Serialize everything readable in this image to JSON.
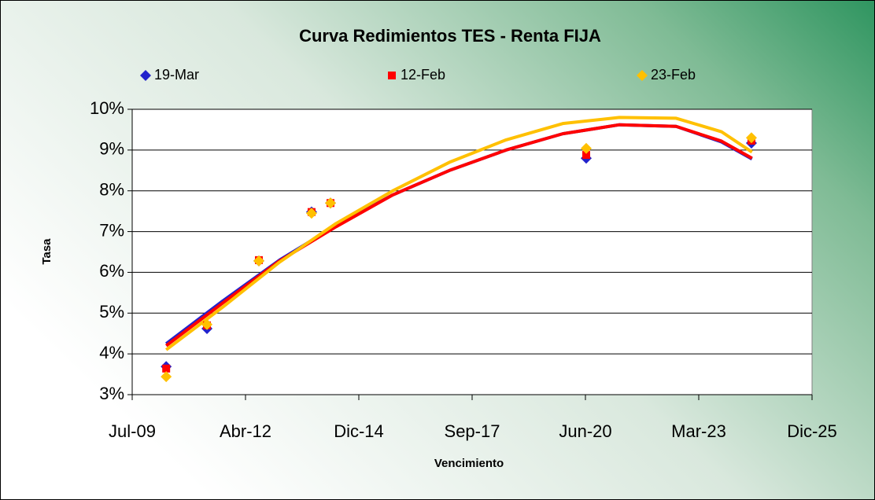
{
  "chart_data": {
    "type": "scatter",
    "title": "Curva Redimientos TES - Renta FIJA",
    "x_label": "Vencimiento",
    "y_label": "Tasa",
    "x": [
      40300,
      40660,
      41118,
      41583,
      41750,
      44007,
      45465
    ],
    "series": [
      {
        "name": "19-Mar",
        "color": "#2222cc",
        "marker": "diamond",
        "values": [
          3.69,
          4.62,
          6.28,
          7.48,
          7.7,
          8.8,
          9.17
        ],
        "trend": {
          "x": [
            40300,
            40800,
            41300,
            41800,
            42300,
            42800,
            43300,
            43800,
            44300,
            44800,
            45200,
            45470
          ],
          "values": [
            4.25,
            5.3,
            6.3,
            7.15,
            7.9,
            8.5,
            9.0,
            9.4,
            9.62,
            9.58,
            9.2,
            8.78
          ]
        }
      },
      {
        "name": "12-Feb",
        "color": "#ff0000",
        "marker": "square",
        "values": [
          3.64,
          4.7,
          6.3,
          7.48,
          7.7,
          8.88,
          9.23
        ],
        "trend": {
          "x": [
            40300,
            40800,
            41300,
            41800,
            42300,
            42800,
            43300,
            43800,
            44300,
            44800,
            45200,
            45470
          ],
          "values": [
            4.2,
            5.25,
            6.28,
            7.12,
            7.9,
            8.5,
            9.0,
            9.4,
            9.62,
            9.58,
            9.22,
            8.8
          ]
        }
      },
      {
        "name": "23-Feb",
        "color": "#ffc000",
        "marker": "diamond",
        "values": [
          3.44,
          4.72,
          6.28,
          7.45,
          7.7,
          9.04,
          9.3
        ],
        "trend": {
          "x": [
            40300,
            40800,
            41300,
            41800,
            42300,
            42800,
            43300,
            43800,
            44300,
            44800,
            45200,
            45470
          ],
          "values": [
            4.1,
            5.15,
            6.25,
            7.2,
            8.0,
            8.7,
            9.25,
            9.65,
            9.8,
            9.78,
            9.45,
            8.95
          ]
        }
      }
    ],
    "xlim": [
      40000,
      46000
    ],
    "xticks": [
      {
        "value": 40000,
        "label": "Jul-09"
      },
      {
        "value": 41000,
        "label": "Abr-12"
      },
      {
        "value": 42000,
        "label": "Dic-14"
      },
      {
        "value": 43000,
        "label": "Sep-17"
      },
      {
        "value": 44000,
        "label": "Jun-20"
      },
      {
        "value": 45000,
        "label": "Mar-23"
      },
      {
        "value": 46000,
        "label": "Dic-25"
      }
    ],
    "ylim": [
      3,
      10
    ],
    "yticks": [
      {
        "value": 3,
        "label": "3%"
      },
      {
        "value": 4,
        "label": "4%"
      },
      {
        "value": 5,
        "label": "5%"
      },
      {
        "value": 6,
        "label": "6%"
      },
      {
        "value": 7,
        "label": "7%"
      },
      {
        "value": 8,
        "label": "8%"
      },
      {
        "value": 9,
        "label": "9%"
      },
      {
        "value": 10,
        "label": "10%"
      }
    ],
    "grid": true,
    "legend": "top"
  }
}
